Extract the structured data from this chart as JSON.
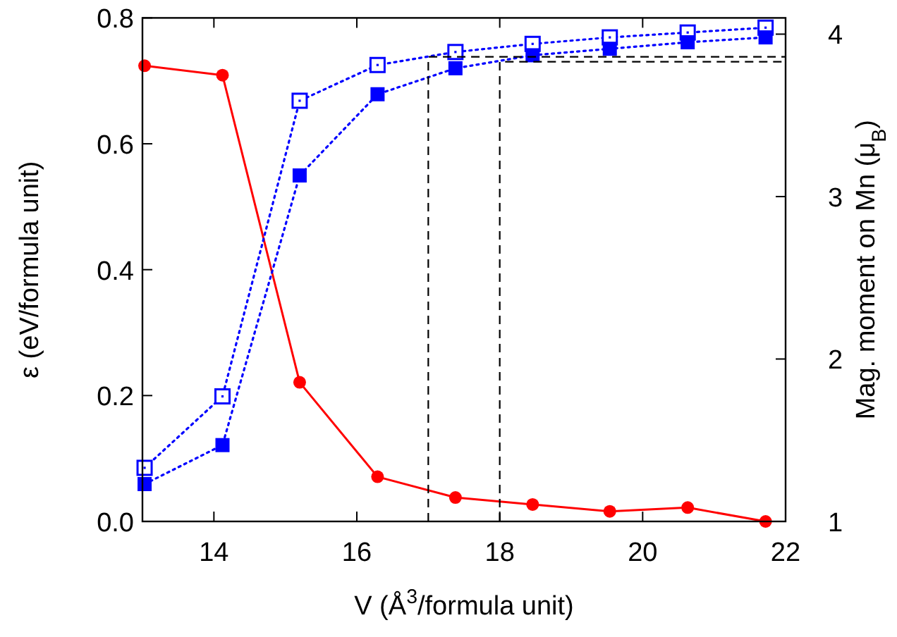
{
  "chart_data": {
    "type": "line",
    "xlabel": "V (Å$^{3}$/formula unit)",
    "ylabel": "ε (eV/formula unit)",
    "y2label": "Mag. moment on Mn (μ$_{B}$)",
    "x": [
      13.03,
      14.12,
      15.2,
      16.29,
      17.38,
      18.46,
      19.54,
      20.63,
      21.72
    ],
    "xlim": [
      13,
      22
    ],
    "xticks": [
      14,
      16,
      18,
      20,
      22
    ],
    "ylim": [
      0,
      0.8
    ],
    "yticks": [
      {
        "value": 0,
        "label": "0.0"
      },
      {
        "value": 0.2,
        "label": "0.2"
      },
      {
        "value": 0.4,
        "label": "0.4"
      },
      {
        "value": 0.6,
        "label": "0.6"
      },
      {
        "value": 0.8,
        "label": "0.8"
      }
    ],
    "y2lim": [
      1,
      4.1
    ],
    "y2ticks": [
      1,
      2,
      3,
      4
    ],
    "grid": false,
    "series": [
      {
        "color": "#ff0000",
        "marker": "circle",
        "line_style": "solid",
        "values": [
          0.724,
          0.709,
          0.221,
          0.071,
          0.038,
          0.027,
          0.016,
          0.022,
          0.0
        ]
      },
      {
        "color": "#0000ff",
        "marker": "square-open",
        "line_style": "dotted",
        "axis": "y2",
        "values": [
          1.33,
          1.77,
          3.59,
          3.81,
          3.89,
          3.94,
          3.98,
          4.01,
          4.04
        ]
      },
      {
        "color": "#0000ff",
        "marker": "square",
        "line_style": "dotted",
        "axis": "y2",
        "values": [
          1.23,
          1.47,
          3.13,
          3.63,
          3.79,
          3.87,
          3.91,
          3.95,
          3.98
        ]
      },
      {
        "color": "#000000",
        "marker": "none",
        "line_style": "dashed",
        "axis": "y2",
        "x": [
          17,
          17,
          22
        ],
        "values": [
          1,
          3.86,
          3.86
        ]
      },
      {
        "color": "#000000",
        "marker": "none",
        "line_style": "dashed",
        "axis": "y2",
        "x": [
          18,
          18,
          22
        ],
        "values": [
          1,
          3.83,
          3.83
        ]
      }
    ]
  }
}
